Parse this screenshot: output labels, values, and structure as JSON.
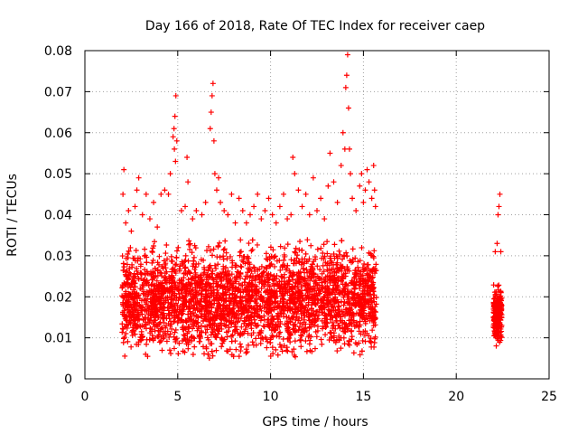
{
  "chart_data": {
    "type": "scatter",
    "title": "Day 166 of 2018, Rate Of TEC Index for receiver caep",
    "xlabel": "GPS time / hours",
    "ylabel": "ROTI / TECUs",
    "xlim": [
      0,
      25
    ],
    "ylim": [
      0,
      0.08
    ],
    "xticks": [
      "0",
      "5",
      "10",
      "15",
      "20",
      "25"
    ],
    "yticks": [
      "0",
      "0.01",
      "0.02",
      "0.03",
      "0.04",
      "0.05",
      "0.06",
      "0.07",
      "0.08"
    ],
    "grid": true,
    "marker": "+",
    "color": "#ff0000",
    "series": [
      {
        "name": "ROTI",
        "points": [
          [
            2.05,
            0.045
          ],
          [
            2.1,
            0.051
          ],
          [
            2.2,
            0.038
          ],
          [
            2.35,
            0.041
          ],
          [
            2.5,
            0.036
          ],
          [
            2.7,
            0.042
          ],
          [
            2.8,
            0.046
          ],
          [
            2.9,
            0.049
          ],
          [
            3.1,
            0.04
          ],
          [
            3.3,
            0.045
          ],
          [
            3.5,
            0.039
          ],
          [
            3.7,
            0.043
          ],
          [
            3.9,
            0.037
          ],
          [
            4.1,
            0.045
          ],
          [
            4.3,
            0.046
          ],
          [
            4.5,
            0.045
          ],
          [
            4.6,
            0.05
          ],
          [
            4.75,
            0.059
          ],
          [
            4.8,
            0.061
          ],
          [
            4.85,
            0.064
          ],
          [
            4.9,
            0.069
          ],
          [
            4.95,
            0.058
          ],
          [
            4.82,
            0.056
          ],
          [
            4.88,
            0.053
          ],
          [
            5.2,
            0.041
          ],
          [
            5.4,
            0.042
          ],
          [
            5.55,
            0.048
          ],
          [
            5.5,
            0.054
          ],
          [
            5.8,
            0.039
          ],
          [
            6.0,
            0.041
          ],
          [
            6.3,
            0.04
          ],
          [
            6.5,
            0.043
          ],
          [
            6.75,
            0.061
          ],
          [
            6.8,
            0.065
          ],
          [
            6.85,
            0.069
          ],
          [
            6.9,
            0.072
          ],
          [
            6.95,
            0.058
          ],
          [
            7.0,
            0.05
          ],
          [
            7.1,
            0.046
          ],
          [
            7.2,
            0.049
          ],
          [
            7.3,
            0.043
          ],
          [
            7.5,
            0.041
          ],
          [
            7.7,
            0.04
          ],
          [
            7.9,
            0.045
          ],
          [
            8.1,
            0.038
          ],
          [
            8.3,
            0.044
          ],
          [
            8.5,
            0.041
          ],
          [
            8.7,
            0.038
          ],
          [
            8.9,
            0.04
          ],
          [
            9.1,
            0.042
          ],
          [
            9.3,
            0.045
          ],
          [
            9.5,
            0.039
          ],
          [
            9.7,
            0.041
          ],
          [
            9.9,
            0.044
          ],
          [
            10.1,
            0.04
          ],
          [
            10.3,
            0.038
          ],
          [
            10.5,
            0.042
          ],
          [
            10.7,
            0.045
          ],
          [
            10.9,
            0.039
          ],
          [
            11.1,
            0.04
          ],
          [
            11.2,
            0.054
          ],
          [
            11.3,
            0.05
          ],
          [
            11.5,
            0.046
          ],
          [
            11.7,
            0.042
          ],
          [
            11.9,
            0.045
          ],
          [
            12.1,
            0.04
          ],
          [
            12.3,
            0.049
          ],
          [
            12.5,
            0.041
          ],
          [
            12.7,
            0.044
          ],
          [
            12.9,
            0.039
          ],
          [
            13.1,
            0.047
          ],
          [
            13.2,
            0.055
          ],
          [
            13.4,
            0.048
          ],
          [
            13.6,
            0.043
          ],
          [
            13.8,
            0.052
          ],
          [
            13.9,
            0.06
          ],
          [
            14.0,
            0.056
          ],
          [
            14.05,
            0.071
          ],
          [
            14.1,
            0.074
          ],
          [
            14.15,
            0.079
          ],
          [
            14.2,
            0.066
          ],
          [
            14.25,
            0.056
          ],
          [
            14.3,
            0.05
          ],
          [
            14.4,
            0.044
          ],
          [
            14.6,
            0.041
          ],
          [
            14.8,
            0.047
          ],
          [
            14.9,
            0.05
          ],
          [
            15.0,
            0.043
          ],
          [
            15.1,
            0.046
          ],
          [
            15.2,
            0.051
          ],
          [
            15.3,
            0.048
          ],
          [
            15.45,
            0.044
          ],
          [
            15.55,
            0.052
          ],
          [
            15.6,
            0.046
          ],
          [
            15.65,
            0.042
          ],
          [
            22.1,
            0.031
          ],
          [
            22.2,
            0.033
          ],
          [
            22.25,
            0.04
          ],
          [
            22.3,
            0.042
          ],
          [
            22.35,
            0.045
          ],
          [
            22.4,
            0.031
          ]
        ]
      }
    ],
    "clusters": [
      {
        "x_range": [
          2.0,
          15.7
        ],
        "y_range": [
          0.005,
          0.034
        ]
      },
      {
        "x_range": [
          22.0,
          22.45
        ],
        "y_range": [
          0.008,
          0.024
        ]
      }
    ]
  }
}
